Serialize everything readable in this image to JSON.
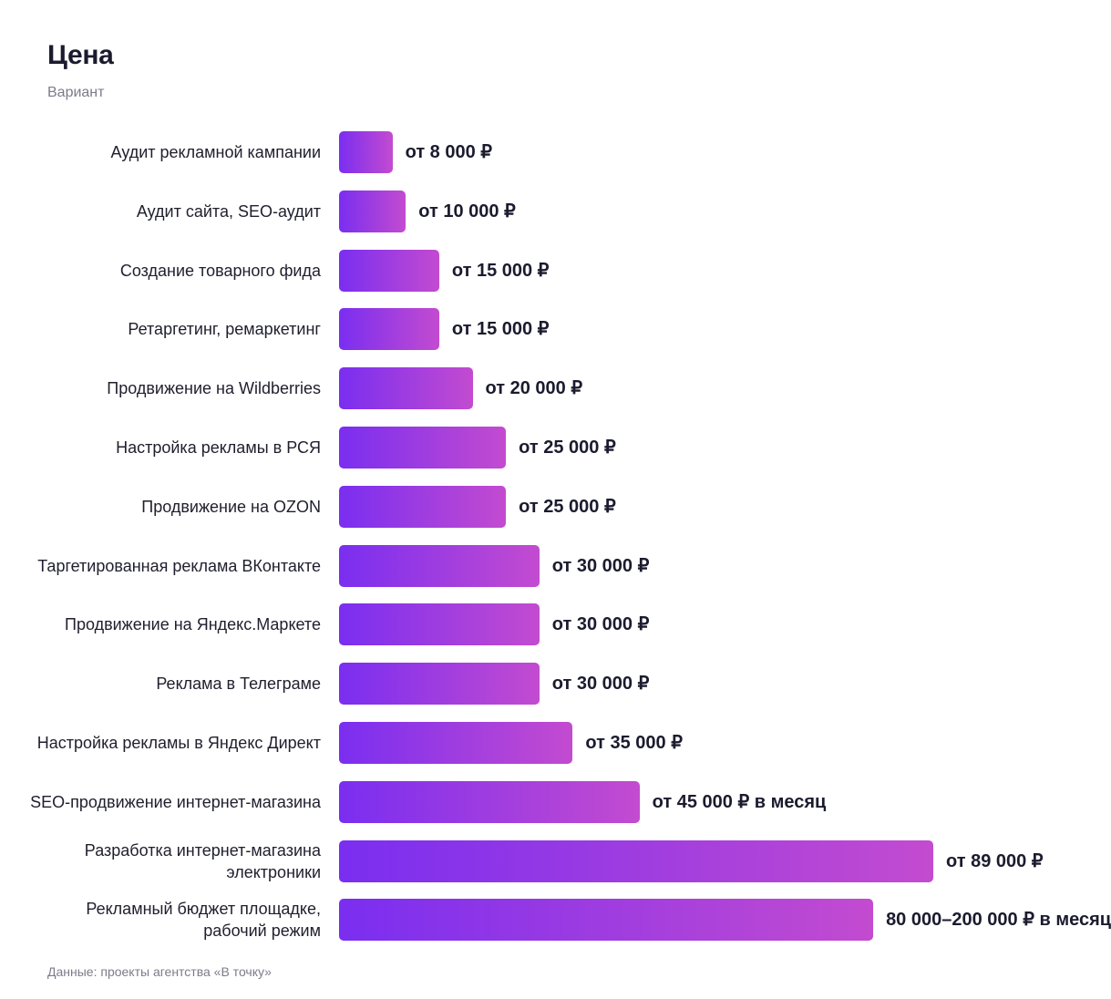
{
  "header": {
    "title": "Цена",
    "subtitle": "Вариант"
  },
  "footer": {
    "source": "Данные: проекты агентства «В точку»"
  },
  "colors": {
    "bar_start": "#7a2ef0",
    "bar_end": "#c34bd0",
    "text": "#1b1b2f",
    "muted": "#7c7c8a"
  },
  "chart_data": {
    "type": "bar",
    "orientation": "horizontal",
    "title": "Цена",
    "subtitle": "Вариант",
    "xlabel": "",
    "ylabel": "",
    "grid": false,
    "xlim": [
      0,
      135000
    ],
    "categories": [
      "Аудит рекламной кампании",
      "Аудит сайта, SEO-аудит",
      "Создание товарного фида",
      "Ретаргетинг, ремаркетинг",
      "Продвижение на Wildberries",
      "Настройка рекламы в РСЯ",
      "Продвижение на OZON",
      "Таргетированная реклама ВКонтакте",
      "Продвижение на Яндекс.Маркете",
      "Реклама в Телеграме",
      "Настройка рекламы в Яндекс Директ",
      "SEO-продвижение интернет-магазина",
      "Разработка интернет-магазина электроники",
      "Рекламный бюджет площадке, рабочий режим"
    ],
    "values": [
      8000,
      10000,
      15000,
      15000,
      20000,
      25000,
      25000,
      30000,
      30000,
      30000,
      35000,
      45000,
      89000,
      80000
    ],
    "data_labels": [
      "от 8 000 ₽",
      "от 10 000 ₽",
      "от 15 000 ₽",
      "от 15 000 ₽",
      "от 20 000 ₽",
      "от 25 000 ₽",
      "от 25 000 ₽",
      "от 30 000 ₽",
      "от 30 000 ₽",
      "от 30 000 ₽",
      "от 35 000 ₽",
      "от 45 000 ₽ в месяц",
      "от 89 000 ₽",
      "80 000–200 000 ₽ в месяц"
    ]
  }
}
